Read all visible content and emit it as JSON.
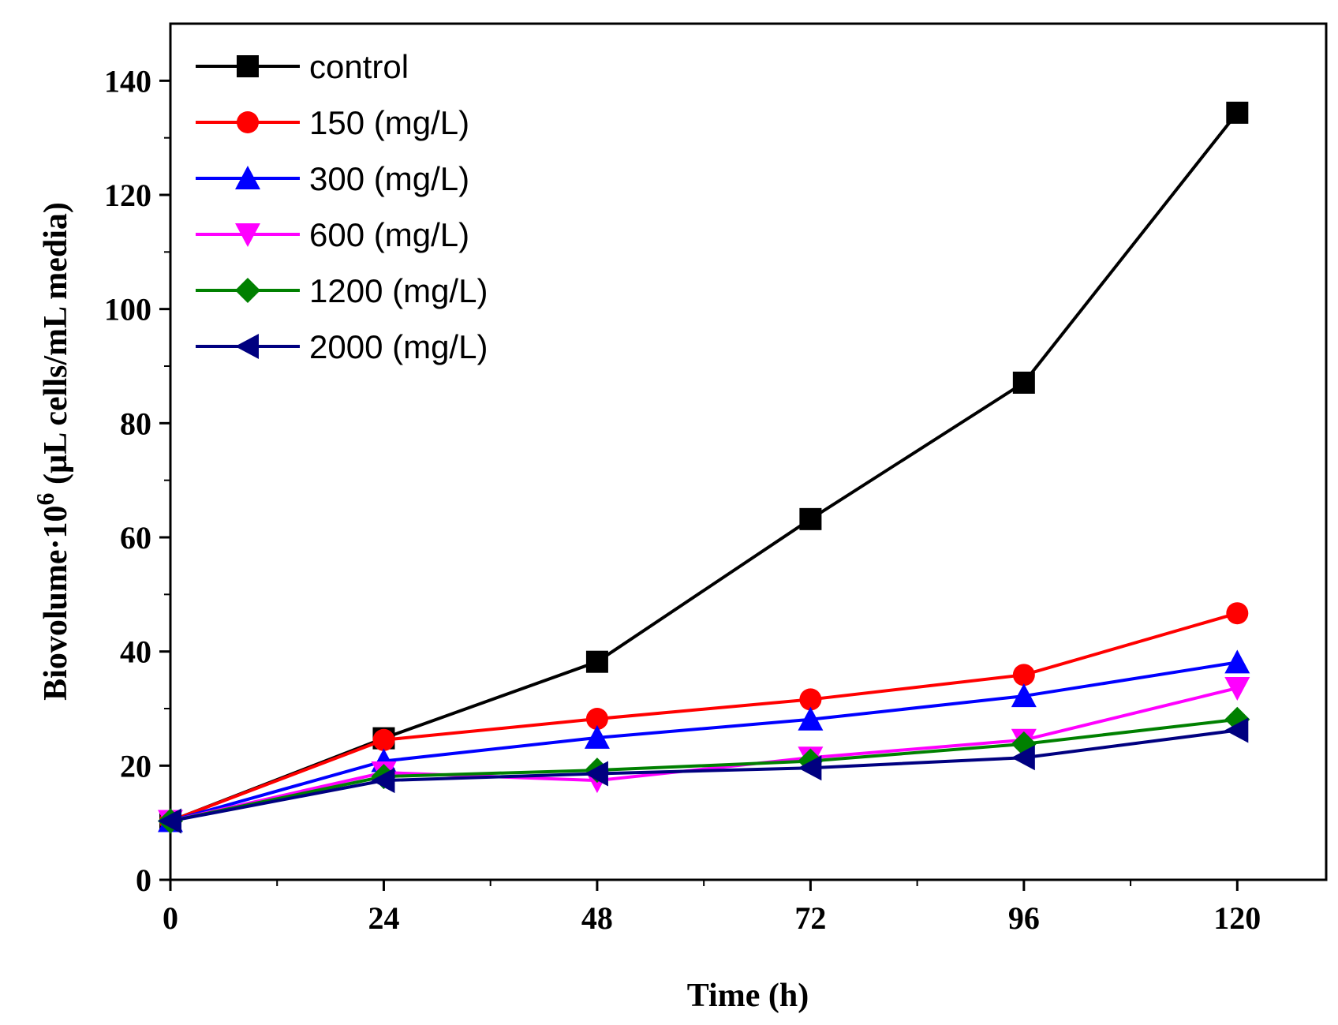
{
  "chart_data": {
    "type": "line",
    "title": "",
    "xlabel": "Time (h)",
    "ylabel_main": "Biovolume·10",
    "ylabel_sup": "6",
    "ylabel_tail": " (µL cells/mL media)",
    "xlim": [
      0,
      130
    ],
    "ylim": [
      0,
      150
    ],
    "xticks": [
      0,
      24,
      48,
      72,
      96,
      120
    ],
    "yticks": [
      0,
      20,
      40,
      60,
      80,
      100,
      120,
      140
    ],
    "legend_position": "top-left",
    "grid": false,
    "x": [
      0,
      24,
      48,
      72,
      96,
      120
    ],
    "series": [
      {
        "name": "control",
        "color": "#000000",
        "marker": "square",
        "values": [
          10.3,
          24.8,
          38.2,
          63.2,
          87.1,
          134.4
        ]
      },
      {
        "name": "150 (mg/L)",
        "color": "#ff0000",
        "marker": "circle",
        "values": [
          10.3,
          24.5,
          28.2,
          31.6,
          35.9,
          46.7
        ]
      },
      {
        "name": "300 (mg/L)",
        "color": "#0000ff",
        "marker": "triangle-up",
        "values": [
          10.3,
          20.8,
          24.9,
          28.1,
          32.2,
          38.1
        ]
      },
      {
        "name": "600 (mg/L)",
        "color": "#ff00ff",
        "marker": "triangle-down",
        "values": [
          10.3,
          18.8,
          17.4,
          21.4,
          24.5,
          33.6
        ]
      },
      {
        "name": "1200 (mg/L)",
        "color": "#008000",
        "marker": "diamond",
        "values": [
          10.3,
          18.1,
          19.2,
          20.8,
          23.8,
          28.1
        ]
      },
      {
        "name": "2000 (mg/L)",
        "color": "#000080",
        "marker": "triangle-left",
        "values": [
          10.3,
          17.4,
          18.6,
          19.6,
          21.4,
          26.2
        ]
      }
    ]
  }
}
